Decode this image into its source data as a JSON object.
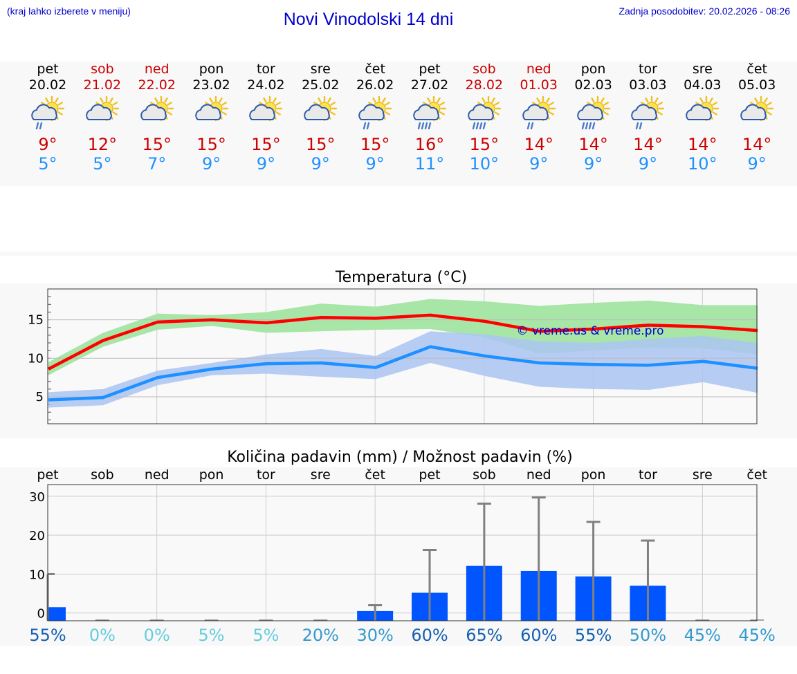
{
  "header": {
    "hint": "(kraj lahko izberete v meniju)",
    "title": "Novi Vinodolski 14 dni",
    "updated": "Zadnja posodobitev: 20.02.2026 - 08:26"
  },
  "days": [
    {
      "name": "pet",
      "date": "20.02",
      "weekend": false,
      "icon": "sun-cloud-rain-icon",
      "max": "9°",
      "min": "5°"
    },
    {
      "name": "sob",
      "date": "21.02",
      "weekend": true,
      "icon": "sun-cloud-icon",
      "max": "12°",
      "min": "5°"
    },
    {
      "name": "ned",
      "date": "22.02",
      "weekend": true,
      "icon": "sun-cloud-icon",
      "max": "15°",
      "min": "7°"
    },
    {
      "name": "pon",
      "date": "23.02",
      "weekend": false,
      "icon": "sun-cloud-icon",
      "max": "15°",
      "min": "9°"
    },
    {
      "name": "tor",
      "date": "24.02",
      "weekend": false,
      "icon": "sun-cloud-icon",
      "max": "15°",
      "min": "9°"
    },
    {
      "name": "sre",
      "date": "25.02",
      "weekend": false,
      "icon": "sun-cloud-icon",
      "max": "15°",
      "min": "9°"
    },
    {
      "name": "čet",
      "date": "26.02",
      "weekend": false,
      "icon": "sun-cloud-rain-icon",
      "max": "15°",
      "min": "9°"
    },
    {
      "name": "pet",
      "date": "27.02",
      "weekend": false,
      "icon": "sun-cloud-heavy-rain-icon",
      "max": "16°",
      "min": "11°"
    },
    {
      "name": "sob",
      "date": "28.02",
      "weekend": true,
      "icon": "sun-cloud-heavy-rain-icon",
      "max": "15°",
      "min": "10°"
    },
    {
      "name": "ned",
      "date": "01.03",
      "weekend": true,
      "icon": "sun-cloud-rain-icon",
      "max": "14°",
      "min": "9°"
    },
    {
      "name": "pon",
      "date": "02.03",
      "weekend": false,
      "icon": "sun-cloud-heavy-rain-icon",
      "max": "14°",
      "min": "9°"
    },
    {
      "name": "tor",
      "date": "03.03",
      "weekend": false,
      "icon": "sun-cloud-rain-icon",
      "max": "14°",
      "min": "9°"
    },
    {
      "name": "sre",
      "date": "04.03",
      "weekend": false,
      "icon": "sun-cloud-icon",
      "max": "14°",
      "min": "10°"
    },
    {
      "name": "čet",
      "date": "05.03",
      "weekend": false,
      "icon": "sun-cloud-icon",
      "max": "14°",
      "min": "9°"
    }
  ],
  "colors": {
    "max_line": "#ff0000",
    "min_line": "#1e90ff",
    "max_band": "#a8e6a8",
    "min_band": "#aac4f2",
    "overlap_band": "#88c8a8",
    "bar": "#0055ff",
    "whisker": "#808080",
    "weekend": "#cc0000",
    "title": "#0000cc"
  },
  "chart_data": [
    {
      "type": "line",
      "title": "Temperatura (°C)",
      "watermark": "© vreme.us & vreme.pro",
      "yticks": [
        "5",
        "10",
        "15"
      ],
      "ylim": [
        1.5,
        19
      ],
      "x": [
        0,
        1,
        2,
        3,
        4,
        5,
        6,
        7,
        8,
        9,
        10,
        11,
        12,
        13
      ],
      "series": [
        {
          "name": "max",
          "values": [
            8.6,
            12.3,
            14.7,
            15.0,
            14.6,
            15.3,
            15.2,
            15.6,
            14.8,
            13.5,
            13.8,
            14.3,
            14.1,
            13.6
          ],
          "band_low": [
            7.8,
            11.5,
            13.7,
            14.2,
            13.3,
            13.5,
            13.7,
            13.8,
            12.7,
            10.6,
            11.0,
            11.4,
            11.3,
            10.5
          ],
          "band_high": [
            9.5,
            13.3,
            15.8,
            15.6,
            16.0,
            17.1,
            16.7,
            17.7,
            17.4,
            16.8,
            17.2,
            17.5,
            16.9,
            16.9
          ]
        },
        {
          "name": "min",
          "values": [
            4.6,
            4.9,
            7.5,
            8.6,
            9.3,
            9.4,
            8.8,
            11.5,
            10.3,
            9.4,
            9.2,
            9.1,
            9.6,
            8.7
          ],
          "band_low": [
            3.6,
            3.9,
            6.5,
            7.8,
            8.0,
            7.6,
            7.3,
            9.4,
            7.7,
            6.3,
            6.0,
            5.9,
            6.9,
            5.5
          ],
          "band_high": [
            5.6,
            6.0,
            8.4,
            9.4,
            10.5,
            11.2,
            10.3,
            13.5,
            13.1,
            12.2,
            12.0,
            12.5,
            12.9,
            12.0
          ]
        }
      ]
    },
    {
      "type": "bar",
      "title": "Količina padavin (mm) / Možnost padavin (%)",
      "categories": [
        "pet",
        "sob",
        "ned",
        "pon",
        "tor",
        "sre",
        "čet",
        "pet",
        "sob",
        "ned",
        "pon",
        "tor",
        "sre",
        "čet"
      ],
      "yticks": [
        "0",
        "10",
        "20",
        "30"
      ],
      "ylim": [
        -2,
        33
      ],
      "values": [
        1.5,
        0,
        0,
        0,
        0,
        0,
        0.5,
        5.2,
        12.1,
        10.8,
        9.4,
        7.0,
        0,
        0
      ],
      "whisker_high": [
        10.0,
        0,
        0,
        0,
        0,
        0,
        2.0,
        16.2,
        28.1,
        29.7,
        23.4,
        18.6,
        0,
        0
      ],
      "chance": [
        "55%",
        "0%",
        "0%",
        "5%",
        "5%",
        "20%",
        "30%",
        "60%",
        "65%",
        "60%",
        "55%",
        "50%",
        "45%",
        "45%"
      ],
      "chance_colors": [
        "#1560b0",
        "#66ccdd",
        "#66ccdd",
        "#66ccdd",
        "#66ccdd",
        "#3399cc",
        "#3399cc",
        "#1560b0",
        "#1560b0",
        "#1560b0",
        "#1560b0",
        "#3399cc",
        "#3399cc",
        "#3399cc"
      ]
    }
  ]
}
